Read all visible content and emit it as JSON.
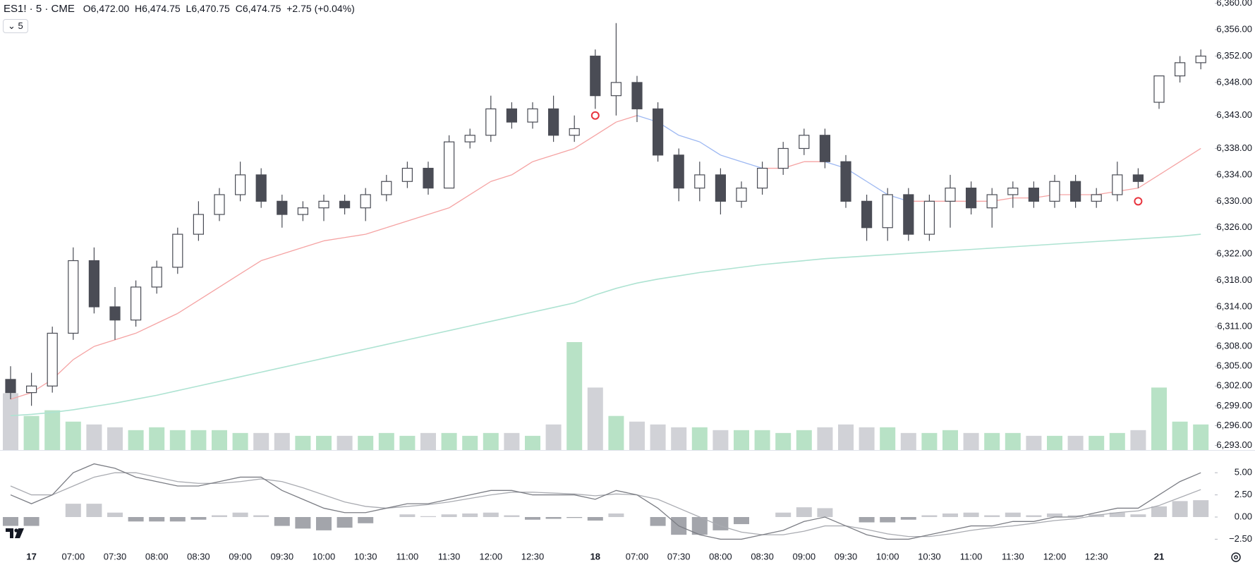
{
  "header": {
    "symbol": "ES1! · 5 · CME",
    "ohlc": [
      {
        "label": "O",
        "value": "6,472.00"
      },
      {
        "label": "H",
        "value": "6,474.75"
      },
      {
        "label": "L",
        "value": "6,470.75"
      },
      {
        "label": "C",
        "value": "6,474.75"
      }
    ],
    "change": "+2.75 (+0.04%)",
    "interval_button": "5"
  },
  "chart_data": [
    {
      "type": "candlestick",
      "categories": [
        null,
        "17",
        null,
        "07:00",
        null,
        "07:30",
        null,
        "08:00",
        null,
        "08:30",
        null,
        "09:00",
        null,
        "09:30",
        null,
        "10:00",
        null,
        "10:30",
        null,
        "11:00",
        null,
        "11:30",
        null,
        "12:00",
        null,
        "12:30",
        null,
        null,
        "18",
        null,
        "07:00",
        null,
        "07:30",
        null,
        "08:00",
        null,
        "08:30",
        null,
        "09:00",
        null,
        "09:30",
        null,
        "10:00",
        null,
        "10:30",
        null,
        "11:00",
        null,
        "11:30",
        null,
        "12:00",
        null,
        "12:30",
        null,
        null,
        "21",
        null,
        null
      ],
      "open": [
        6303,
        6301,
        6302,
        6310,
        6321,
        6314,
        6312,
        6317,
        6320,
        6325,
        6328,
        6331,
        6334,
        6330,
        6328,
        6329,
        6330,
        6329,
        6331,
        6333,
        6335,
        6332,
        6339,
        6340,
        6344,
        6342,
        6344,
        6340,
        6352,
        6346,
        6348,
        6344,
        6337,
        6332,
        6334,
        6330,
        6332,
        6335,
        6338,
        6340,
        6336,
        6330,
        6326,
        6331,
        6325,
        6330,
        6332,
        6329,
        6331,
        6332,
        6330,
        6333,
        6330,
        6331,
        6334,
        6345,
        6349,
        6351
      ],
      "high": [
        6305,
        6304,
        6311,
        6323,
        6323,
        6317,
        6318,
        6321,
        6326,
        6330,
        6332,
        6336,
        6335,
        6331,
        6330,
        6331,
        6331,
        6332,
        6334,
        6336,
        6336,
        6340,
        6341,
        6346,
        6345,
        6345,
        6346,
        6343,
        6353,
        6357,
        6349,
        6345,
        6338,
        6336,
        6335,
        6333,
        6336,
        6339,
        6341,
        6341,
        6337,
        6331,
        6332,
        6332,
        6331,
        6334,
        6333,
        6332,
        6333,
        6333,
        6334,
        6334,
        6332,
        6336,
        6335,
        6349,
        6352,
        6353
      ],
      "low": [
        6300,
        6299,
        6301,
        6309,
        6313,
        6309,
        6311,
        6316,
        6319,
        6324,
        6327,
        6330,
        6329,
        6326,
        6327,
        6327,
        6328,
        6327,
        6330,
        6332,
        6331,
        6332,
        6338,
        6339,
        6341,
        6341,
        6339,
        6339,
        6344,
        6343,
        6342,
        6336,
        6330,
        6330,
        6328,
        6329,
        6331,
        6334,
        6337,
        6335,
        6329,
        6324,
        6324,
        6324,
        6324,
        6326,
        6328,
        6326,
        6329,
        6329,
        6329,
        6329,
        6329,
        6330,
        6332,
        6344,
        6348,
        6350
      ],
      "close": [
        6301,
        6302,
        6310,
        6321,
        6314,
        6312,
        6317,
        6320,
        6325,
        6328,
        6331,
        6334,
        6330,
        6328,
        6329,
        6330,
        6329,
        6331,
        6333,
        6335,
        6332,
        6339,
        6340,
        6344,
        6342,
        6344,
        6340,
        6341,
        6346,
        6348,
        6344,
        6337,
        6332,
        6334,
        6330,
        6332,
        6335,
        6338,
        6340,
        6336,
        6330,
        6326,
        6331,
        6325,
        6330,
        6332,
        6329,
        6331,
        6332,
        6330,
        6333,
        6330,
        6331,
        6334,
        6333,
        6349,
        6351,
        6352
      ],
      "up_color": "#ffffff",
      "down_color": "#4a4c55",
      "border_color": "#4a4c55",
      "volume": [
        20,
        12,
        14,
        10,
        9,
        8,
        7,
        8,
        7,
        7,
        7,
        6,
        6,
        6,
        5,
        5,
        5,
        5,
        6,
        5,
        6,
        6,
        5,
        6,
        6,
        5,
        9,
        38,
        22,
        12,
        10,
        9,
        8,
        8,
        7,
        7,
        7,
        6,
        7,
        8,
        9,
        8,
        8,
        6,
        6,
        7,
        6,
        6,
        6,
        5,
        5,
        5,
        5,
        6,
        7,
        22,
        10,
        9
      ],
      "volume_up_color": "#b8e2c6",
      "volume_down_color": "#d1d2d7",
      "ema": {
        "values": [
          6300,
          6301,
          6303,
          6306,
          6308,
          6309,
          6310,
          6311.5,
          6313,
          6315,
          6317,
          6319,
          6321,
          6322,
          6323,
          6324,
          6324.5,
          6325,
          6326,
          6327,
          6328,
          6329,
          6331,
          6333,
          6334,
          6336,
          6337,
          6338,
          6340,
          6342,
          6343,
          6342,
          6340,
          6339,
          6337,
          6336,
          6335,
          6335,
          6336,
          6336,
          6335,
          6333,
          6331,
          6330,
          6330,
          6330,
          6330,
          6330,
          6330.5,
          6330.5,
          6331,
          6331,
          6331,
          6331.5,
          6332,
          6334,
          6336,
          6338
        ],
        "color_up": "#f5a3a3",
        "color_down": "#9db8f2"
      },
      "sma": {
        "values": [
          6297.5,
          6297.7,
          6298,
          6298.4,
          6298.9,
          6299.4,
          6300,
          6300.6,
          6301.3,
          6302,
          6302.7,
          6303.4,
          6304.1,
          6304.8,
          6305.5,
          6306.2,
          6306.9,
          6307.6,
          6308.3,
          6309,
          6309.7,
          6310.4,
          6311.1,
          6311.8,
          6312.5,
          6313.2,
          6313.9,
          6314.6,
          6315.8,
          6316.8,
          6317.6,
          6318.2,
          6318.7,
          6319.2,
          6319.6,
          6320,
          6320.4,
          6320.7,
          6321,
          6321.3,
          6321.5,
          6321.7,
          6321.9,
          6322.1,
          6322.3,
          6322.5,
          6322.7,
          6322.9,
          6323.1,
          6323.3,
          6323.5,
          6323.7,
          6323.9,
          6324.1,
          6324.3,
          6324.5,
          6324.7,
          6325
        ],
        "color": "#aee3d2"
      },
      "signals": {
        "values": [
          null,
          null,
          null,
          null,
          null,
          null,
          null,
          null,
          null,
          null,
          null,
          null,
          null,
          null,
          null,
          null,
          null,
          null,
          null,
          null,
          null,
          null,
          null,
          null,
          null,
          null,
          null,
          null,
          6343,
          null,
          null,
          null,
          null,
          null,
          null,
          null,
          null,
          null,
          null,
          null,
          null,
          null,
          null,
          null,
          null,
          null,
          null,
          null,
          null,
          null,
          null,
          null,
          null,
          null,
          6330,
          null,
          null,
          null
        ],
        "color": "#e8343e"
      },
      "ylim": [
        6292.3,
        6360.5
      ],
      "yticks": [
        {
          "value": 6360,
          "label": "6,360.00"
        },
        {
          "value": 6356,
          "label": "6,356.00"
        },
        {
          "value": 6352,
          "label": "6,352.00"
        },
        {
          "value": 6348,
          "label": "6,348.00"
        },
        {
          "value": 6343,
          "label": "6,343.00"
        },
        {
          "value": 6338,
          "label": "6,338.00"
        },
        {
          "value": 6334,
          "label": "6,334.00"
        },
        {
          "value": 6330,
          "label": "6,330.00"
        },
        {
          "value": 6326,
          "label": "6,326.00"
        },
        {
          "value": 6322,
          "label": "6,322.00"
        },
        {
          "value": 6318,
          "label": "6,318.00"
        },
        {
          "value": 6314,
          "label": "6,314.00"
        },
        {
          "value": 6311,
          "label": "6,311.00"
        },
        {
          "value": 6308,
          "label": "6,308.00"
        },
        {
          "value": 6305,
          "label": "6,305.00"
        },
        {
          "value": 6302,
          "label": "6,302.00"
        },
        {
          "value": 6299,
          "label": "6,299.00"
        },
        {
          "value": 6296,
          "label": "6,296.00"
        },
        {
          "value": 6293,
          "label": "6,293.00"
        }
      ]
    },
    {
      "type": "macd",
      "macd": {
        "values": [
          2.5,
          1.5,
          2.5,
          5,
          6,
          5.5,
          4.5,
          4,
          3.5,
          3.5,
          4,
          4.5,
          4.5,
          3,
          2,
          1,
          0.5,
          0.5,
          1,
          1.5,
          1.5,
          2,
          2.5,
          3,
          3,
          2.5,
          2.5,
          2.5,
          2,
          3,
          2.5,
          1,
          -1,
          -2,
          -2.5,
          -2.5,
          -2,
          -1.5,
          -0.5,
          0,
          -1,
          -2,
          -2.5,
          -2.5,
          -2,
          -1.5,
          -1,
          -1,
          -0.5,
          -0.5,
          0,
          0,
          0.5,
          1,
          1,
          2.5,
          4,
          5
        ],
        "color": "#7b7d84"
      },
      "signal": {
        "values": [
          3.5,
          2.5,
          2.5,
          3.5,
          4.5,
          5,
          5,
          4.5,
          4,
          3.8,
          3.8,
          4,
          4.3,
          4,
          3.3,
          2.5,
          1.7,
          1.2,
          1,
          1.2,
          1.4,
          1.7,
          2.1,
          2.5,
          2.8,
          2.8,
          2.7,
          2.6,
          2.4,
          2.6,
          2.5,
          2,
          1,
          0,
          -1,
          -1.7,
          -2,
          -2,
          -1.6,
          -1,
          -1,
          -1.4,
          -1.9,
          -2.2,
          -2.2,
          -1.9,
          -1.5,
          -1.2,
          -1,
          -0.7,
          -0.4,
          -0.2,
          0.2,
          0.5,
          0.7,
          1.3,
          2.2,
          3.1
        ],
        "color": "#a9abb1"
      },
      "histogram": {
        "values": [
          -1,
          -1,
          0,
          1.5,
          1.5,
          0.5,
          -0.5,
          -0.5,
          -0.5,
          -0.3,
          0.2,
          0.5,
          0.2,
          -1,
          -1.3,
          -1.5,
          -1.2,
          -0.7,
          0,
          0.3,
          0.1,
          0.3,
          0.4,
          0.5,
          0.2,
          -0.3,
          -0.2,
          -0.1,
          -0.4,
          0.4,
          0,
          -1,
          -2,
          -2,
          -1.5,
          -0.8,
          0,
          0.5,
          1.1,
          1,
          0,
          -0.6,
          -0.6,
          -0.3,
          0.2,
          0.4,
          0.5,
          0.2,
          0.5,
          0.2,
          0.4,
          0.2,
          0.3,
          0.5,
          0.3,
          1.2,
          1.8,
          1.9
        ],
        "color_pos": "#c9cacf",
        "color_neg": "#a3a5ab"
      },
      "ylim": [
        -3.5,
        7.4
      ],
      "yticks": [
        {
          "value": 5,
          "label": "5.00"
        },
        {
          "value": 2.5,
          "label": "2.50"
        },
        {
          "value": 0,
          "label": "0.00"
        },
        {
          "value": -2.5,
          "label": "−2.50"
        }
      ]
    }
  ]
}
